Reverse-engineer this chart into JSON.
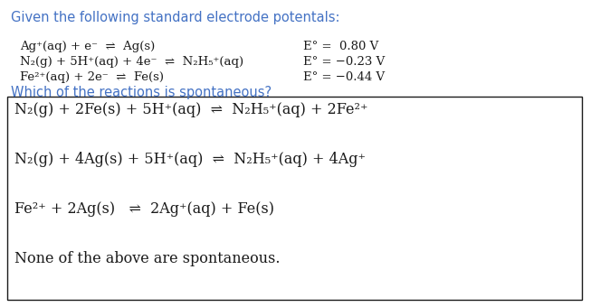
{
  "bg_color": "#ffffff",
  "header_color": "#4472c4",
  "header_text": "Given the following standard electrode potentals:",
  "question_color": "#4472c4",
  "question_text": "Which of the reactions is spontaneous?",
  "text_color": "#1a1a1a",
  "box_color": "#1a1a1a",
  "font_size_header": 10.5,
  "font_size_eq": 9.5,
  "font_size_choice": 11.5,
  "font_size_question": 10.5,
  "eq1_left": "Ag⁺(aq) + e⁻  ⇌  Ag(s)",
  "eq1_right": "E° =  0.80 V",
  "eq2_left": "N₂(g) + 5H⁺(aq) + 4e⁻  ⇌  N₂H₅⁺(aq)",
  "eq2_right": "E° = −0.23 V",
  "eq3_left": "Fe²⁺(aq) + 2e⁻  ⇌  Fe(s)",
  "eq3_right": "E° = −0.44 V",
  "choice1": "N₂(g) + 2Fe(s) + 5H⁺(aq)  ⇌  N₂H₅⁺(aq) + 2Fe²⁺",
  "choice2": "N₂(g) + 4Ag(s) + 5H⁺(aq)  ⇌  N₂H₅⁺(aq) + 4Ag⁺",
  "choice3": "Fe²⁺ + 2Ag(s)   ⇌  2Ag⁺(aq) + Fe(s)",
  "choice4": "None of the above are spontaneous."
}
